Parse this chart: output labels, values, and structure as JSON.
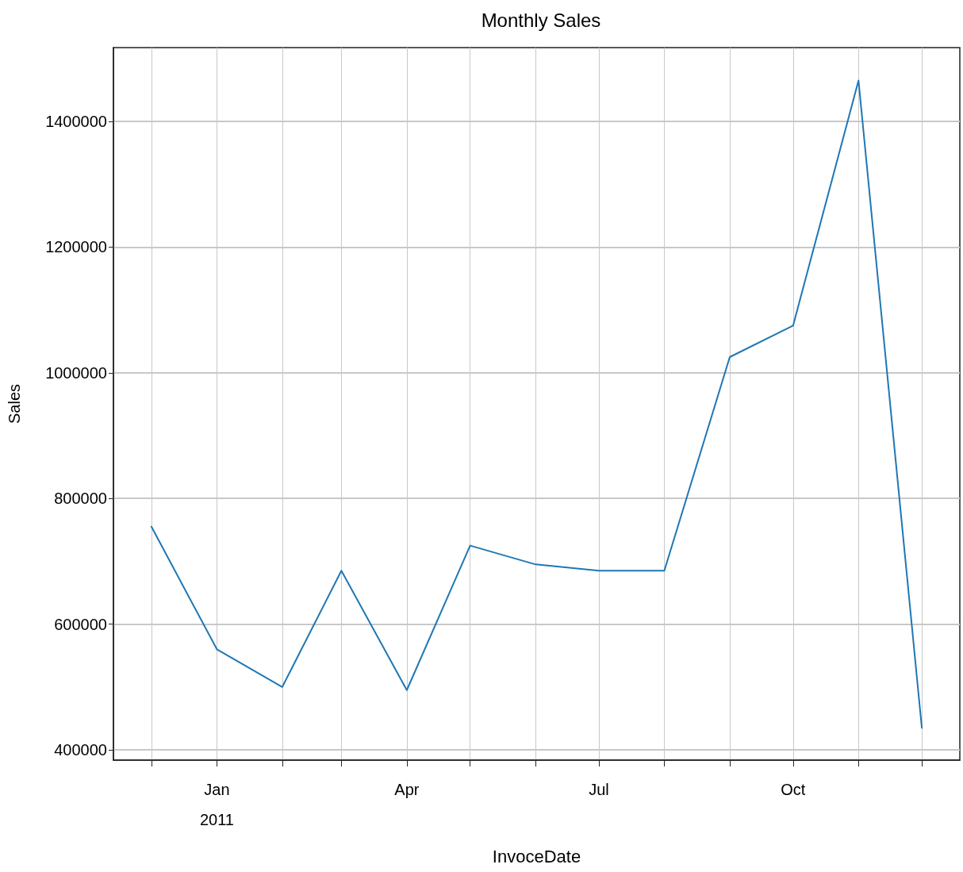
{
  "chart_data": {
    "type": "line",
    "title": "Monthly Sales",
    "xlabel": "InvoceDate",
    "ylabel": "Sales",
    "x": [
      "2010-12",
      "2011-01",
      "2011-02",
      "2011-03",
      "2011-04",
      "2011-05",
      "2011-06",
      "2011-07",
      "2011-08",
      "2011-09",
      "2011-10",
      "2011-11",
      "2011-12"
    ],
    "series": [
      {
        "color": "#1f77b4",
        "values": [
          755000,
          560000,
          500000,
          685000,
          495000,
          725000,
          695000,
          685000,
          685000,
          1025000,
          1075000,
          1465000,
          435000
        ]
      }
    ],
    "xlim": [
      "2010-11-13",
      "2011-12-19"
    ],
    "xticks": [
      {
        "value": "2010-12",
        "label": null
      },
      {
        "value": "2011-01",
        "label": "Jan\n2011"
      },
      {
        "value": "2011-02",
        "label": null
      },
      {
        "value": "2011-03",
        "label": null
      },
      {
        "value": "2011-04",
        "label": "Apr"
      },
      {
        "value": "2011-05",
        "label": null
      },
      {
        "value": "2011-06",
        "label": null
      },
      {
        "value": "2011-07",
        "label": "Jul"
      },
      {
        "value": "2011-08",
        "label": null
      },
      {
        "value": "2011-09",
        "label": null
      },
      {
        "value": "2011-10",
        "label": "Oct"
      },
      {
        "value": "2011-11",
        "label": null
      },
      {
        "value": "2011-12",
        "label": null
      }
    ],
    "ylim": [
      383600,
      1517400
    ],
    "yticks": [
      400000,
      600000,
      800000,
      1000000,
      1200000,
      1400000
    ],
    "grid": true,
    "marker": "none",
    "line_style": "solid"
  }
}
